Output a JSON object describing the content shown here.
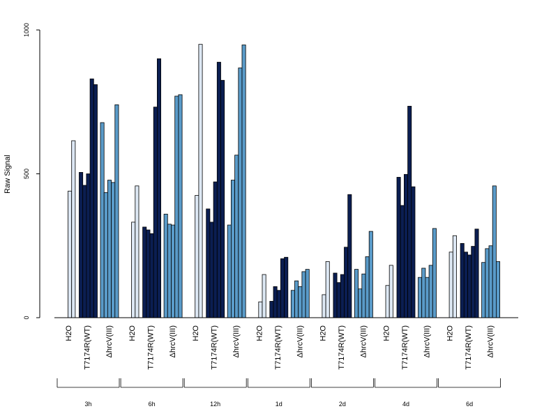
{
  "chart_data": {
    "type": "bar",
    "ylabel": "Raw Signal",
    "ylim": [
      0,
      1000
    ],
    "yticks": [
      0,
      500,
      1000
    ],
    "grid": false,
    "colors": {
      "H2O": "#dde8f4",
      "T7174R(WT)": "#0b1e52",
      "ΔhrcV(III)": "#5a9bc9"
    },
    "condition_labels": [
      "H2O",
      "T7174R(WT)",
      "ΔhrcV(III)"
    ],
    "groups": [
      {
        "label": "3h",
        "values": {
          "H2O": [
            440,
            615
          ],
          "T7174R(WT)": [
            505,
            460,
            500,
            830,
            810
          ],
          "ΔhrcV(III)": [
            678,
            435,
            478,
            470,
            740
          ]
        }
      },
      {
        "label": "6h",
        "values": {
          "H2O": [
            332,
            458
          ],
          "T7174R(WT)": [
            315,
            305,
            292,
            732,
            900
          ],
          "ΔhrcV(III)": [
            360,
            325,
            322,
            770,
            775
          ]
        }
      },
      {
        "label": "12h",
        "values": {
          "H2O": [
            425,
            950
          ],
          "T7174R(WT)": [
            378,
            332,
            472,
            888,
            825
          ],
          "ΔhrcV(III)": [
            322,
            478,
            565,
            868,
            948
          ]
        }
      },
      {
        "label": "1d",
        "values": {
          "H2O": [
            55,
            150
          ],
          "T7174R(WT)": [
            57,
            108,
            95,
            205,
            210
          ],
          "ΔhrcV(III)": [
            95,
            128,
            108,
            160,
            168
          ]
        }
      },
      {
        "label": "2d",
        "values": {
          "H2O": [
            80,
            195
          ],
          "T7174R(WT)": [
            155,
            122,
            150,
            245,
            428
          ],
          "ΔhrcV(III)": [
            168,
            100,
            152,
            212,
            300
          ]
        }
      },
      {
        "label": "4d",
        "values": {
          "H2O": [
            112,
            182
          ],
          "T7174R(WT)": [
            488,
            390,
            498,
            735,
            455
          ],
          "ΔhrcV(III)": [
            140,
            172,
            140,
            182,
            310
          ]
        }
      },
      {
        "label": "6d",
        "values": {
          "H2O": [
            228,
            285
          ],
          "T7174R(WT)": [
            258,
            228,
            218,
            248,
            308
          ],
          "ΔhrcV(III)": [
            192,
            240,
            250,
            458,
            195
          ]
        }
      }
    ]
  }
}
